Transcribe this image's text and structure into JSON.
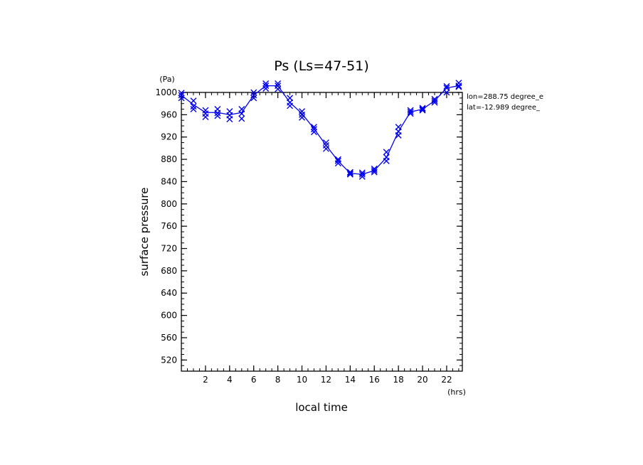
{
  "chart_data": {
    "type": "line",
    "title": "Ps (Ls=47-51)",
    "xlabel": "local time",
    "ylabel": "surface pressure",
    "xunit": "(hrs)",
    "yunit": "(Pa)",
    "xlim": [
      0,
      23.3
    ],
    "ylim": [
      500,
      1000
    ],
    "xticks": [
      2,
      4,
      6,
      8,
      10,
      12,
      14,
      16,
      18,
      20,
      22
    ],
    "xtick_labels": [
      "2",
      "4",
      "6",
      "8",
      "10",
      "12",
      "14",
      "16",
      "18",
      "20",
      "22"
    ],
    "yticks": [
      520,
      560,
      600,
      640,
      680,
      720,
      760,
      800,
      840,
      880,
      920,
      960,
      1000
    ],
    "ytick_labels": [
      "520",
      "560",
      "600",
      "640",
      "680",
      "720",
      "760",
      "800",
      "840",
      "880",
      "920",
      "960",
      "1000"
    ],
    "grid": false,
    "annotations": [
      "lon=288.75 degree_e",
      "lat=-12.989 degree_"
    ],
    "series": [
      {
        "color": "#0000ee",
        "x": [
          0,
          1,
          2,
          3,
          4,
          5,
          6,
          7,
          8,
          9,
          10,
          11,
          12,
          13,
          14,
          15,
          16,
          17,
          18,
          19,
          20,
          21,
          22,
          23
        ],
        "y": [
          995,
          978,
          964,
          964,
          960,
          964,
          995,
          1012,
          1012,
          982,
          962,
          935,
          905,
          877,
          855,
          853,
          860,
          883,
          930,
          965,
          970,
          985,
          1008,
          1012
        ]
      }
    ],
    "scatter_points": {
      "color": "#0000ee",
      "x": [
        0,
        0,
        0,
        1,
        1,
        1,
        2,
        2,
        2,
        3,
        3,
        3,
        4,
        4,
        4,
        5,
        5,
        5,
        6,
        6,
        6,
        7,
        7,
        7,
        8,
        8,
        8,
        9,
        9,
        9,
        10,
        10,
        10,
        11,
        11,
        11,
        12,
        12,
        12,
        13,
        13,
        13,
        14,
        14,
        14,
        15,
        15,
        15,
        16,
        16,
        16,
        17,
        17,
        17,
        18,
        18,
        18,
        19,
        19,
        19,
        20,
        20,
        20,
        21,
        21,
        21,
        22,
        22,
        22,
        23,
        23,
        23
      ],
      "y": [
        999,
        995,
        990,
        985,
        975,
        970,
        968,
        962,
        956,
        970,
        963,
        958,
        966,
        959,
        952,
        970,
        962,
        953,
        1000,
        995,
        990,
        1016,
        1012,
        1007,
        1016,
        1012,
        1006,
        990,
        982,
        976,
        966,
        960,
        955,
        938,
        934,
        929,
        910,
        905,
        899,
        880,
        877,
        873,
        857,
        855,
        853,
        856,
        853,
        849,
        863,
        860,
        857,
        893,
        884,
        877,
        938,
        930,
        923,
        968,
        965,
        962,
        972,
        970,
        968,
        988,
        985,
        982,
        1011,
        1008,
        1000,
        1017,
        1012,
        1010
      ]
    }
  }
}
